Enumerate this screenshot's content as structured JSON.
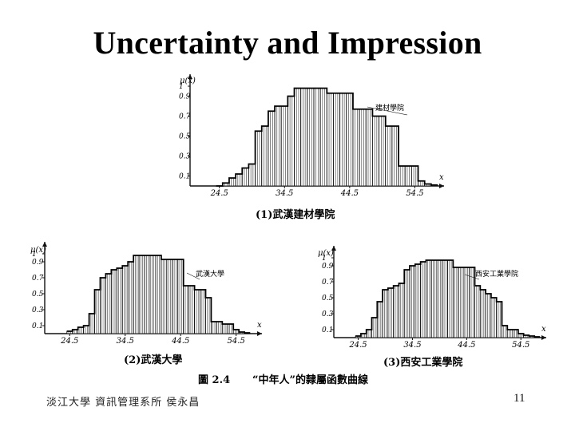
{
  "slide": {
    "title": "Uncertainty and Impression",
    "footer": "淡江大學 資訊管理系所 侯永昌",
    "page_number": "11"
  },
  "figure": {
    "caption_number": "圖 2.4",
    "caption_text": "“中年人”的隸屬函數曲線",
    "panels": [
      {
        "id": "p1",
        "sublabel": "(1)武漢建材學院",
        "legend": "建材學院",
        "y_axis_label": "μ(x)",
        "x_axis_label": "x",
        "y_ticks": [
          "1",
          "0.9",
          "0.7",
          "0.5",
          "0.3",
          "0.1"
        ],
        "x_ticks": [
          "24.5",
          "34.5",
          "44.5",
          "54.5"
        ]
      },
      {
        "id": "p2",
        "sublabel": "(2)武漢大學",
        "legend": "武漢大學",
        "y_axis_label": "μ(x)",
        "x_axis_label": "x",
        "y_ticks": [
          "1",
          "0.9",
          "0.7",
          "0.5",
          "0.3",
          "0.1"
        ],
        "x_ticks": [
          "24.5",
          "34.5",
          "44.5",
          "54.5"
        ]
      },
      {
        "id": "p3",
        "sublabel": "(3)西安工業學院",
        "legend": "西安工業學院",
        "y_axis_label": "μ(x)",
        "x_axis_label": "x",
        "y_ticks": [
          "1",
          "0.9",
          "0.7",
          "0.5",
          "0.3",
          "0.1"
        ],
        "x_ticks": [
          "24.5",
          "34.5",
          "44.5",
          "54.5"
        ]
      }
    ]
  },
  "chart_data": [
    {
      "type": "bar",
      "title": "(1)武漢建材學院",
      "ylabel": "μ(x)",
      "xlabel": "x",
      "xlim": [
        20,
        58
      ],
      "ylim": [
        0,
        1
      ],
      "x": [
        24,
        25,
        26,
        27,
        28,
        29,
        30,
        31,
        32,
        33,
        34,
        35,
        36,
        37,
        38,
        39,
        40,
        41,
        42,
        43,
        44,
        45,
        46,
        47,
        48,
        49,
        50,
        51,
        52,
        53,
        54,
        55,
        56,
        57
      ],
      "values": [
        0,
        0.03,
        0.08,
        0.12,
        0.18,
        0.22,
        0.55,
        0.6,
        0.75,
        0.8,
        0.8,
        0.9,
        0.98,
        0.98,
        0.98,
        0.98,
        0.98,
        0.93,
        0.93,
        0.93,
        0.93,
        0.77,
        0.77,
        0.77,
        0.7,
        0.7,
        0.6,
        0.6,
        0.2,
        0.2,
        0.2,
        0.05,
        0.02,
        0.01
      ]
    },
    {
      "type": "bar",
      "title": "(2)武漢大學",
      "ylabel": "μ(x)",
      "xlabel": "x",
      "xlim": [
        20,
        58
      ],
      "ylim": [
        0,
        1
      ],
      "x": [
        24,
        25,
        26,
        27,
        28,
        29,
        30,
        31,
        32,
        33,
        34,
        35,
        36,
        37,
        38,
        39,
        40,
        41,
        42,
        43,
        44,
        45,
        46,
        47,
        48,
        49,
        50,
        51,
        52,
        53,
        54,
        55,
        56
      ],
      "values": [
        0.03,
        0.05,
        0.08,
        0.1,
        0.25,
        0.55,
        0.7,
        0.75,
        0.8,
        0.82,
        0.85,
        0.9,
        0.98,
        0.98,
        0.98,
        0.98,
        0.98,
        0.93,
        0.93,
        0.93,
        0.93,
        0.6,
        0.6,
        0.55,
        0.55,
        0.45,
        0.15,
        0.15,
        0.12,
        0.12,
        0.05,
        0.02,
        0.01
      ]
    },
    {
      "type": "bar",
      "title": "(3)西安工業學院",
      "ylabel": "μ(x)",
      "xlabel": "x",
      "xlim": [
        20,
        58
      ],
      "ylim": [
        0,
        1
      ],
      "x": [
        24,
        25,
        26,
        27,
        28,
        29,
        30,
        31,
        32,
        33,
        34,
        35,
        36,
        37,
        38,
        39,
        40,
        41,
        42,
        43,
        44,
        45,
        46,
        47,
        48,
        49,
        50,
        51,
        52,
        53,
        54,
        55,
        56,
        57
      ],
      "values": [
        0.02,
        0.05,
        0.1,
        0.25,
        0.45,
        0.6,
        0.62,
        0.65,
        0.68,
        0.85,
        0.9,
        0.92,
        0.95,
        0.97,
        0.97,
        0.97,
        0.97,
        0.97,
        0.88,
        0.88,
        0.88,
        0.88,
        0.65,
        0.6,
        0.55,
        0.5,
        0.45,
        0.15,
        0.1,
        0.1,
        0.05,
        0.03,
        0.02,
        0.01
      ]
    }
  ]
}
